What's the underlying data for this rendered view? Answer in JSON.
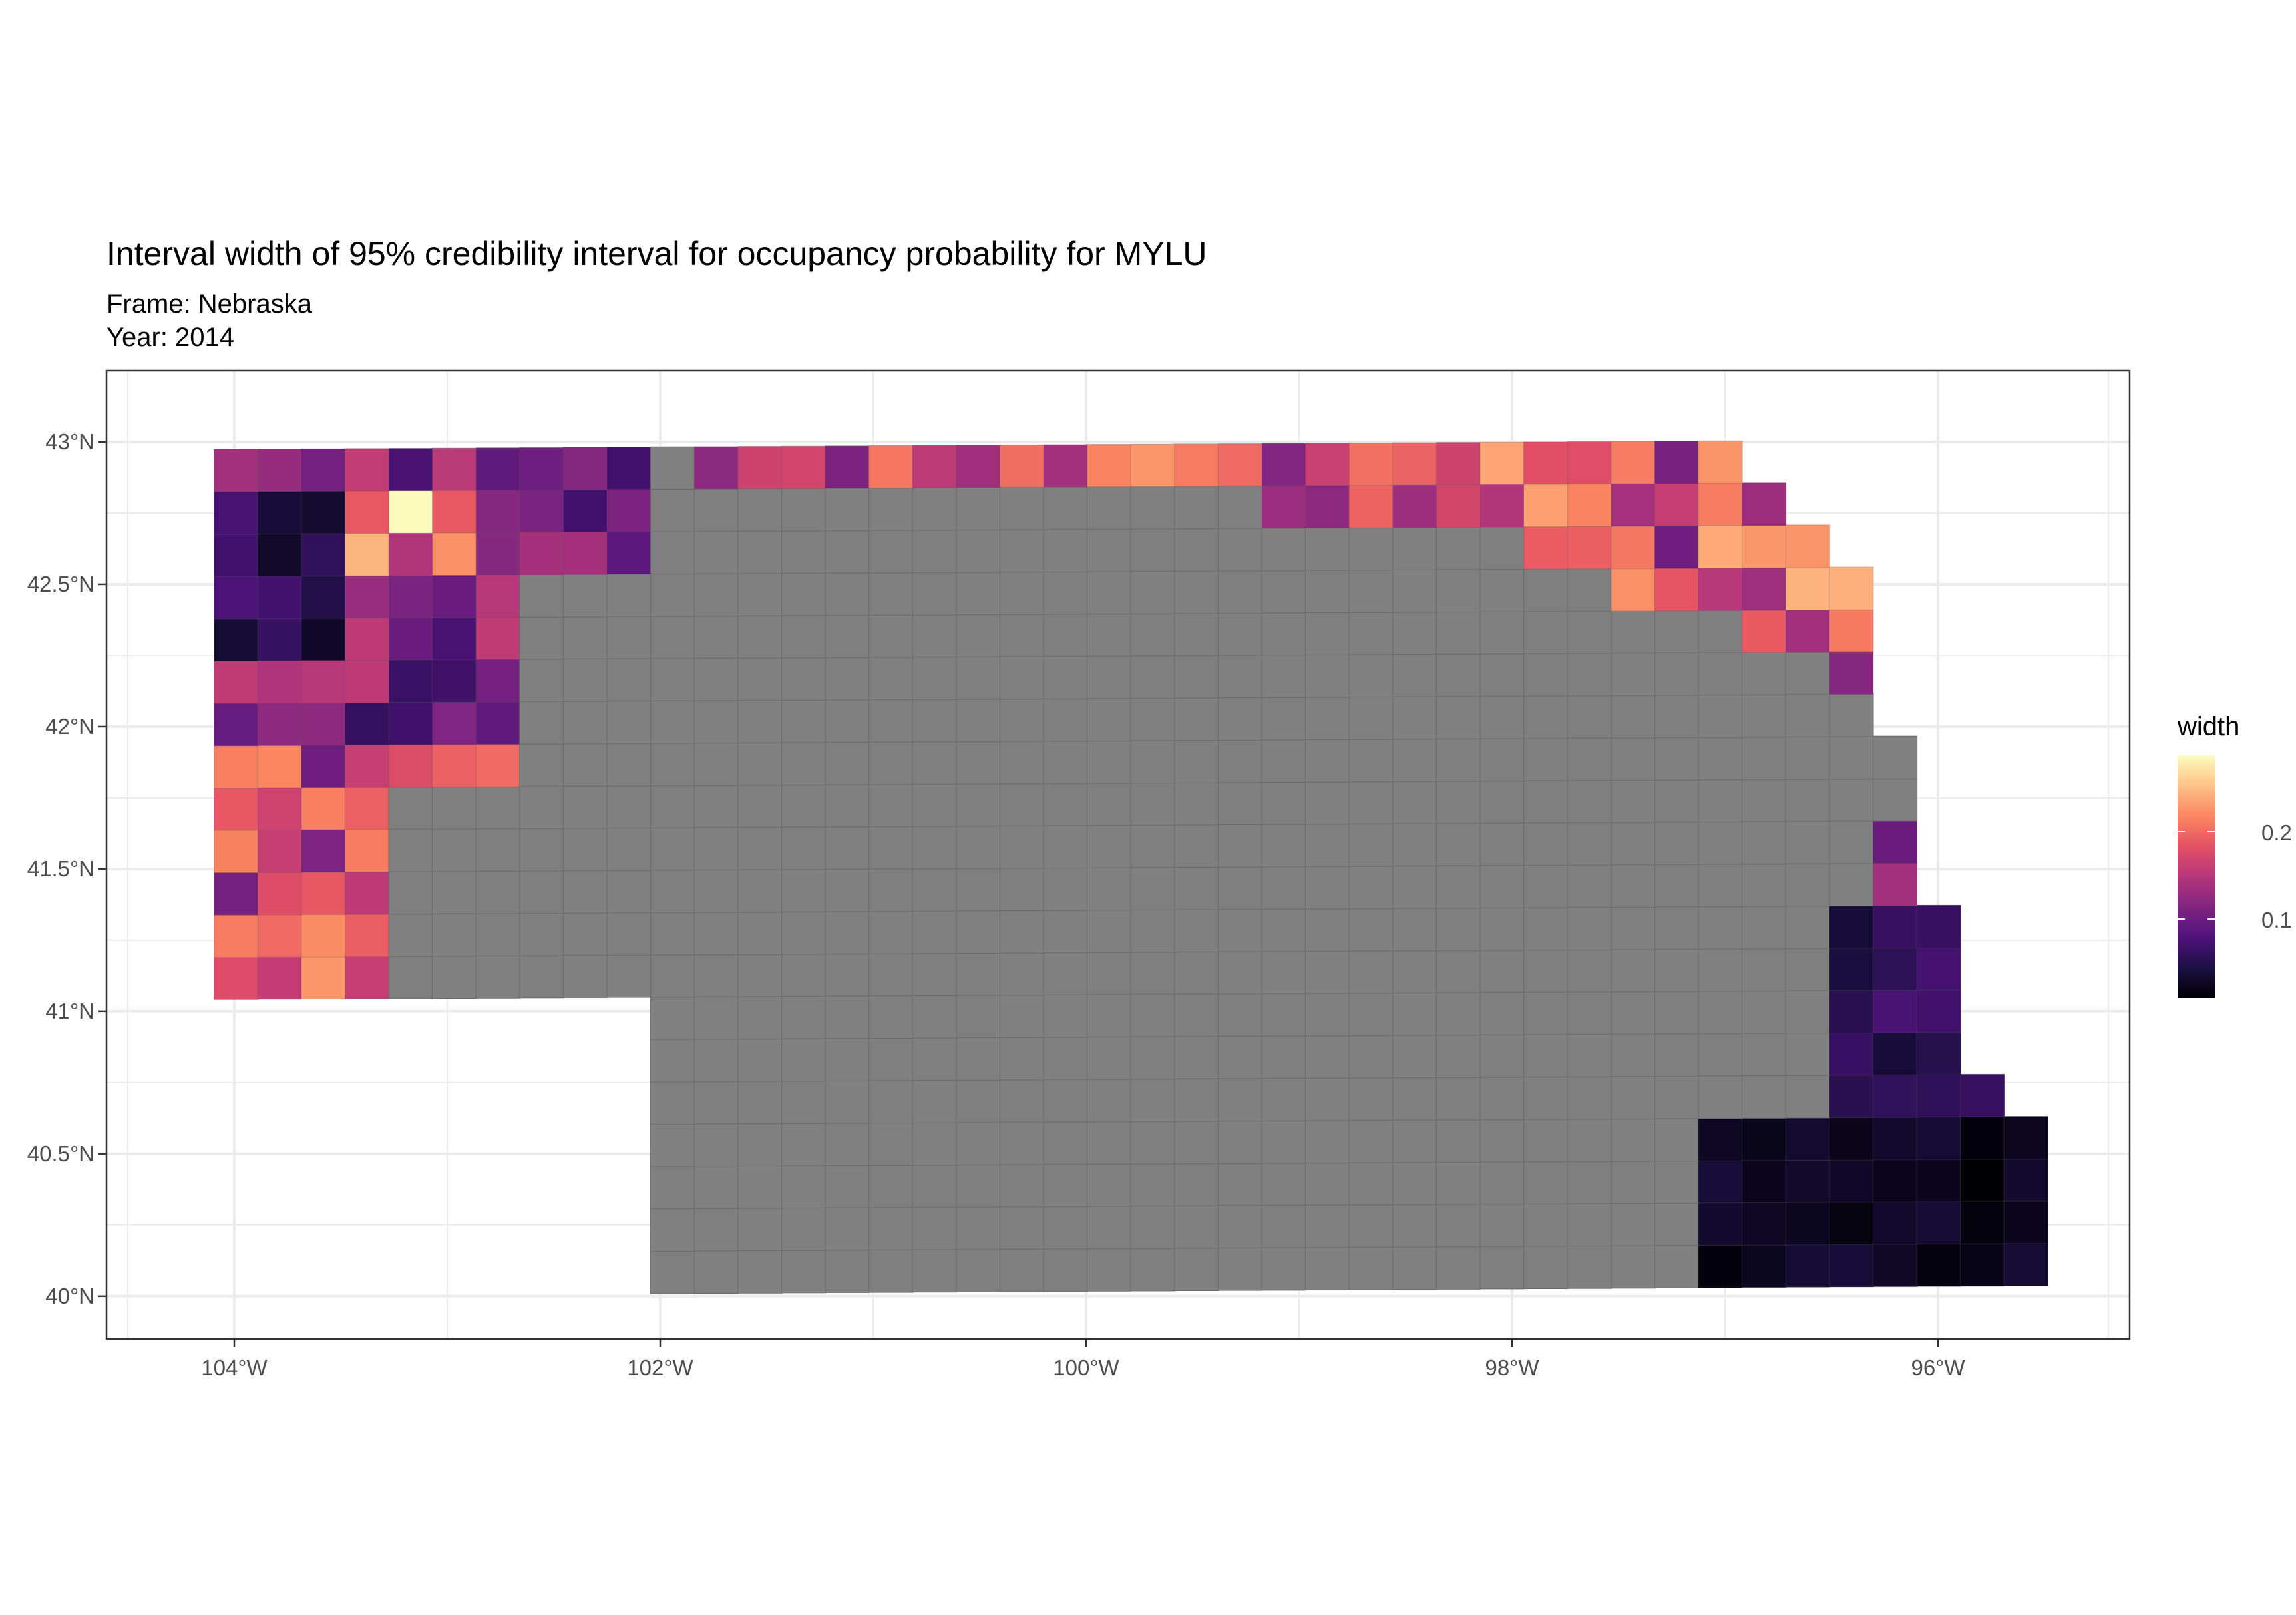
{
  "title": "Interval width of 95% credibility interval for occupancy probability for MYLU",
  "subtitle": [
    "Frame: Nebraska",
    "Year: 2014"
  ],
  "axes": {
    "x_ticks": [
      "104°W",
      "102°W",
      "100°W",
      "98°W",
      "96°W"
    ],
    "y_ticks": [
      "43°N",
      "42.5°N",
      "42°N",
      "41.5°N",
      "41°N",
      "40.5°N",
      "40°N"
    ],
    "x_range": [
      -104.6,
      -95.1
    ],
    "y_range": [
      39.85,
      43.25
    ]
  },
  "legend": {
    "title": "width",
    "labels": [
      "0.2",
      "0.1"
    ],
    "range": [
      0.0,
      0.28
    ]
  },
  "colors": {
    "no_data_fill": "#808080",
    "grid": "#ebebeb",
    "panel_border": "#333333",
    "magma_scale": [
      "#000004",
      "#1c1044",
      "#4f127b",
      "#812581",
      "#b5367a",
      "#e55064",
      "#fb8761",
      "#fec287",
      "#fcfdbf"
    ]
  },
  "regions": {
    "northwest": "mixed 0.05–0.28, brightest near 103.2°W 42.7°N and 103.8°W 41.8°N",
    "north": "mixed 0.10–0.22",
    "northeast": "mixed 0.10–0.23",
    "southeast": "low 0.0–0.08",
    "interior": "no data (grey)"
  }
}
